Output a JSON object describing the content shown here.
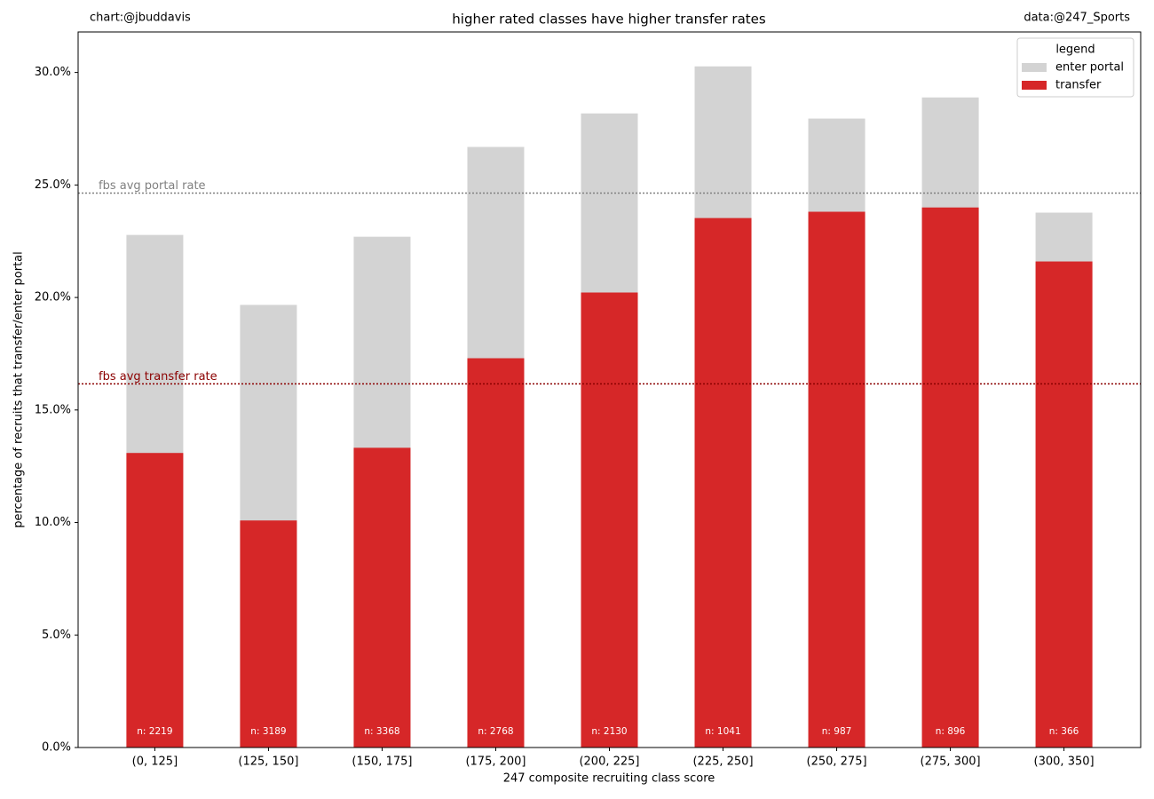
{
  "chart_data": {
    "type": "bar",
    "title": "higher rated classes have higher transfer rates",
    "credit_left": "chart:@jbuddavis",
    "credit_right": "data:@247_Sports",
    "xlabel": "247 composite recruiting class score",
    "ylabel": "percentage of recruits that transfer/enter portal",
    "categories": [
      "(0, 125]",
      "(125, 150]",
      "(150, 175]",
      "(175, 200]",
      "(200, 225]",
      "(225, 250]",
      "(250, 275]",
      "(275, 300]",
      "(300, 350]"
    ],
    "series": [
      {
        "name": "enter portal",
        "color": "#d3d3d3",
        "values": [
          22.78,
          19.67,
          22.7,
          26.69,
          28.18,
          30.27,
          27.95,
          28.89,
          23.77
        ]
      },
      {
        "name": "transfer",
        "color": "#d62728",
        "values": [
          13.09,
          10.09,
          13.32,
          17.3,
          20.22,
          23.53,
          23.81,
          24.0,
          21.6
        ]
      }
    ],
    "n_labels": [
      "n: 2219",
      "n: 3189",
      "n: 3368",
      "n: 2768",
      "n: 2130",
      "n: 1041",
      "n: 987",
      "n: 896",
      "n: 366"
    ],
    "reference_lines": [
      {
        "label": "fbs avg portal rate",
        "value": 24.64,
        "color": "#808080"
      },
      {
        "label": "fbs avg transfer rate",
        "value": 16.16,
        "color": "#8b0000"
      }
    ],
    "legend_title": "legend",
    "legend": "upper right",
    "ylim": [
      0,
      31.8
    ],
    "yticks": [
      {
        "value": 0,
        "label": "0.0%"
      },
      {
        "value": 5,
        "label": "5.0%"
      },
      {
        "value": 10,
        "label": "10.0%"
      },
      {
        "value": 15,
        "label": "15.0%"
      },
      {
        "value": 20,
        "label": "20.0%"
      },
      {
        "value": 25,
        "label": "25.0%"
      },
      {
        "value": 30,
        "label": "30.0%"
      }
    ]
  }
}
